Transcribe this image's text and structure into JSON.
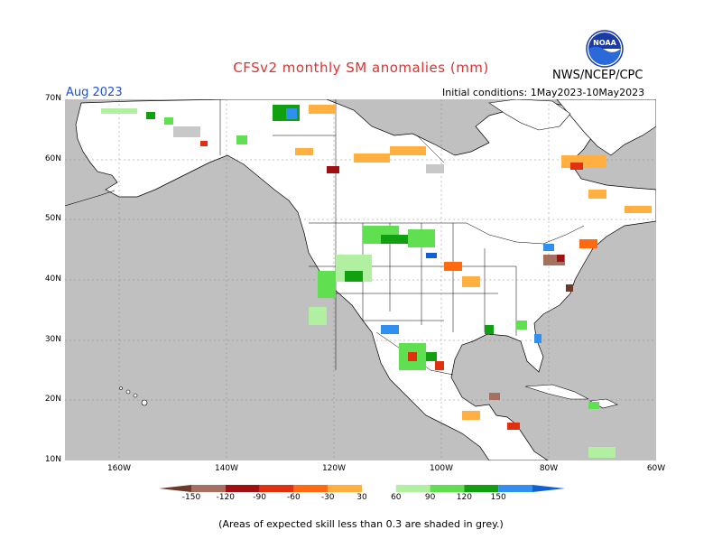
{
  "title": "CFSv2 monthly SM anomalies (mm)",
  "agency": "NWS/NCEP/CPC",
  "logo_text": "NOAA",
  "month": "Aug 2023",
  "initial_conditions": "Initial conditions: 1May2023-10May2023",
  "footnote": "(Areas of expected skill less than 0.3 are shaded in grey.)",
  "lat_labels": [
    "70N",
    "60N",
    "50N",
    "40N",
    "30N",
    "20N",
    "10N"
  ],
  "lon_labels": [
    "160W",
    "140W",
    "120W",
    "100W",
    "80W",
    "60W"
  ],
  "colorbar": {
    "labels": [
      "-150",
      "-120",
      "-90",
      "-60",
      "-30",
      "30",
      "60",
      "90",
      "120",
      "150"
    ],
    "colors": [
      "#6b3a2a",
      "#a67060",
      "#a01010",
      "#e03010",
      "#ff6a10",
      "#ffb040",
      "#ffffff",
      "#b0f0a0",
      "#60e050",
      "#10a010",
      "#3090f0",
      "#1060d0"
    ]
  },
  "colors": {
    "ocean_grey": "#c0c0c0",
    "land": "#ffffff",
    "skill_grey": "#c8c8c8"
  }
}
